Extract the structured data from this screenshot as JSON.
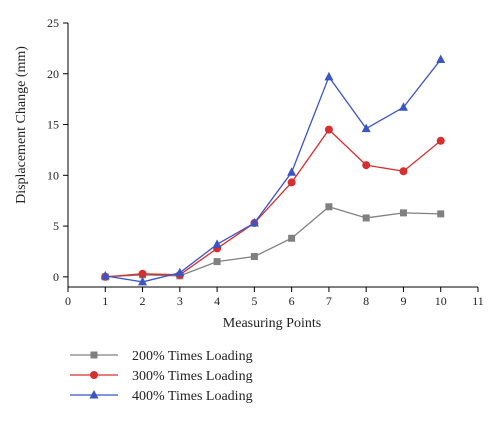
{
  "chart_data": {
    "type": "line",
    "xlabel": "Measuring Points",
    "ylabel": "Displacement Change (mm)",
    "xlim": [
      0,
      11
    ],
    "ylim": [
      -1,
      25
    ],
    "xticks": [
      0,
      1,
      2,
      3,
      4,
      5,
      6,
      7,
      8,
      9,
      10,
      11
    ],
    "yticks": [
      0,
      5,
      10,
      15,
      20,
      25
    ],
    "grid": false,
    "legend_position": "bottom-left, below plot",
    "x": [
      1,
      2,
      3,
      4,
      5,
      6,
      7,
      8,
      9,
      10
    ],
    "series": [
      {
        "name": "200% Times Loading",
        "color": "#808080",
        "marker": "square",
        "values": [
          0.0,
          0.2,
          0.1,
          1.5,
          2.0,
          3.8,
          6.9,
          5.8,
          6.3,
          6.2
        ]
      },
      {
        "name": "300% Times Loading",
        "color": "#d62f2f",
        "marker": "circle",
        "values": [
          0.0,
          0.3,
          0.2,
          2.8,
          5.3,
          9.3,
          14.5,
          11.0,
          10.4,
          13.4
        ]
      },
      {
        "name": "400% Times Loading",
        "color": "#3a55c4",
        "marker": "triangle",
        "values": [
          0.1,
          -0.5,
          0.4,
          3.2,
          5.3,
          10.3,
          19.7,
          14.6,
          16.7,
          21.4
        ]
      }
    ]
  }
}
